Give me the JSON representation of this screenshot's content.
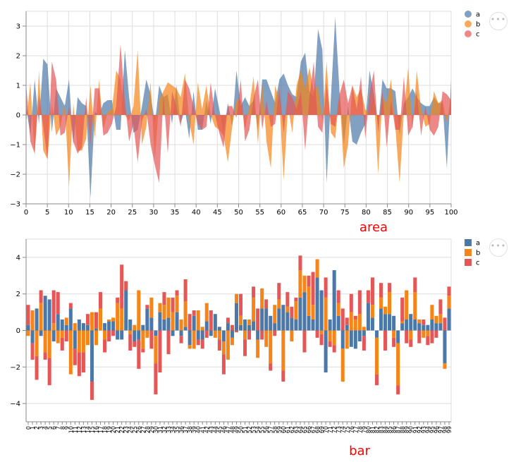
{
  "colors": {
    "a": "#4c78a8",
    "b": "#f58518",
    "c": "#e45756"
  },
  "menu": {
    "icon": "ellipsis-icon",
    "glyph": "•••"
  },
  "area_caption": "area",
  "bar_caption": "bar",
  "chart_data": [
    {
      "type": "area",
      "legend": [
        "a",
        "b",
        "c"
      ],
      "legend_position": "top-right",
      "grid": true,
      "xlim": [
        0,
        100
      ],
      "ylim": [
        -3,
        3.5
      ],
      "x_ticks": [
        0,
        5,
        10,
        15,
        20,
        25,
        30,
        35,
        40,
        45,
        50,
        55,
        60,
        65,
        70,
        75,
        80,
        85,
        90,
        95,
        100
      ],
      "y_ticks": [
        -3,
        -2,
        -1,
        0,
        1,
        2,
        3
      ],
      "series": [
        {
          "name": "a",
          "values": [
            0.3,
            -0.7,
            1.2,
            -0.3,
            1.9,
            1.7,
            -0.6,
            0.9,
            0.6,
            0.3,
            1.2,
            -1.0,
            0.6,
            0.4,
            0.3,
            -2.8,
            0.1,
            0.0,
            0.4,
            0.5,
            0.5,
            -0.5,
            -0.5,
            2.2,
            0.6,
            -0.6,
            -0.5,
            0.3,
            1.2,
            0.7,
            -0.3,
            1.0,
            0.6,
            0.7,
            -0.3,
            1.0,
            -0.3,
            0.2,
            -0.8,
            0.8,
            -0.5,
            -0.5,
            0.5,
            -0.3,
            0.9,
            0.2,
            -0.6,
            0.4,
            -0.4,
            1.5,
            0.3,
            0.6,
            0.3,
            0.5,
            -0.5,
            1.2,
            1.2,
            0.8,
            0.4,
            1.2,
            1.4,
            1.0,
            0.7,
            0.6,
            1.8,
            2.1,
            0.8,
            0.6,
            2.9,
            2.2,
            -2.3,
            0.6,
            3.3,
            0.8,
            -1.0,
            0.3,
            -0.9,
            -1.0,
            -0.6,
            -0.3,
            1.5,
            0.7,
            -0.4,
            1.2,
            0.9,
            0.9,
            0.8,
            -0.7,
            0.4,
            0.6,
            0.9,
            0.6,
            0.4,
            0.3,
            0.3,
            0.6,
            0.4,
            0.4,
            -1.8,
            1.2
          ]
        },
        {
          "name": "b",
          "values": [
            -0.3,
            1.1,
            -1.4,
            1.5,
            -1.2,
            -1.5,
            0.4,
            -0.7,
            -0.4,
            0.4,
            -2.4,
            0.4,
            -1.2,
            -1.2,
            -0.8,
            1.0,
            -0.8,
            1.2,
            -0.5,
            0.1,
            0.2,
            1.5,
            1.2,
            0.0,
            -0.2,
            0.3,
            2.2,
            -1.0,
            -0.4,
            1.1,
            -1.5,
            0.5,
            0.8,
            1.1,
            1.0,
            0.9,
            0.6,
            1.4,
            -0.2,
            -1.0,
            1.1,
            0.2,
            1.0,
            0.0,
            -0.4,
            -0.5,
            -0.7,
            -1.6,
            -0.4,
            0.5,
            0.5,
            -0.5,
            0.3,
            1.3,
            -1.0,
            1.1,
            -0.9,
            -1.8,
            1.0,
            0.5,
            -2.2,
            0.3,
            -0.6,
            1.0,
            1.5,
            0.9,
            1.6,
            0.8,
            1.0,
            -0.2,
            1.8,
            -0.6,
            -0.8,
            0.7,
            -1.8,
            -1.0,
            1.0,
            0.6,
            0.9,
            0.2,
            0.0,
            0.7,
            -2.0,
            0.6,
            0.4,
            1.2,
            -0.4,
            -2.3,
            0.1,
            1.6,
            -0.5,
            1.5,
            0.2,
            -0.4,
            -0.3,
            0.8,
            0.4,
            0.5,
            -0.3,
            0.7
          ]
        },
        {
          "name": "c",
          "values": [
            1.1,
            -0.9,
            -1.3,
            0.7,
            -0.4,
            -1.5,
            1.8,
            1.2,
            -0.7,
            -0.6,
            0.3,
            -0.9,
            -1.3,
            -1.1,
            0.6,
            -1.0,
            0.9,
            0.9,
            -0.7,
            -0.6,
            -0.3,
            0.3,
            2.4,
            0.5,
            -0.9,
            -0.3,
            -1.6,
            -0.2,
            0.2,
            -1.0,
            -1.7,
            -2.3,
            0.7,
            -1.3,
            0.8,
            0.3,
            -0.4,
            1.2,
            0.9,
            0.3,
            -0.3,
            -0.5,
            -0.4,
            1.1,
            0.0,
            -0.6,
            -1.1,
            0.3,
            0.3,
            -0.1,
            1.2,
            -0.9,
            -0.5,
            0.6,
            1.2,
            -0.5,
            0.5,
            -0.4,
            -0.3,
            0.9,
            -0.6,
            0.8,
            0.6,
            0.2,
            0.8,
            -1.2,
            0.6,
            1.8,
            -0.4,
            -0.6,
            1.1,
            -0.3,
            -0.4,
            0.7,
            1.2,
            0.4,
            1.0,
            0.2,
            1.3,
            -0.8,
            0.7,
            1.5,
            -0.6,
            0.8,
            -1.1,
            0.5,
            -0.5,
            -0.5,
            1.3,
            -0.7,
            -0.4,
            0.8,
            -0.7,
            0.3,
            -0.5,
            -0.7,
            -0.4,
            0.8,
            0.7,
            0.5
          ]
        }
      ]
    },
    {
      "type": "bar",
      "stacked": true,
      "legend": [
        "a",
        "b",
        "c"
      ],
      "legend_position": "top-right",
      "grid": true,
      "ylim": [
        -5,
        5
      ],
      "y_ticks": [
        -4,
        -2,
        0,
        2,
        4
      ],
      "categories": [
        "0",
        "1",
        "2",
        "3",
        "4",
        "5",
        "6",
        "7",
        "8",
        "9",
        "10",
        "11",
        "12",
        "13",
        "14",
        "15",
        "16",
        "17",
        "18",
        "19",
        "20",
        "21",
        "22",
        "23",
        "24",
        "25",
        "26",
        "27",
        "28",
        "29",
        "30",
        "31",
        "32",
        "33",
        "34",
        "35",
        "36",
        "37",
        "38",
        "39",
        "40",
        "41",
        "42",
        "43",
        "44",
        "45",
        "46",
        "47",
        "48",
        "49",
        "50",
        "51",
        "52",
        "53",
        "54",
        "55",
        "56",
        "57",
        "58",
        "59",
        "60",
        "61",
        "62",
        "63",
        "64",
        "65",
        "66",
        "67",
        "68",
        "69",
        "70",
        "71",
        "72",
        "73",
        "74",
        "75",
        "76",
        "77",
        "78",
        "79",
        "80",
        "81",
        "82",
        "83",
        "84",
        "85",
        "86",
        "87",
        "88",
        "89",
        "90",
        "91",
        "92",
        "93",
        "94",
        "95",
        "96",
        "97",
        "98",
        "99"
      ],
      "series_order": [
        "a",
        "b",
        "c"
      ]
    }
  ]
}
